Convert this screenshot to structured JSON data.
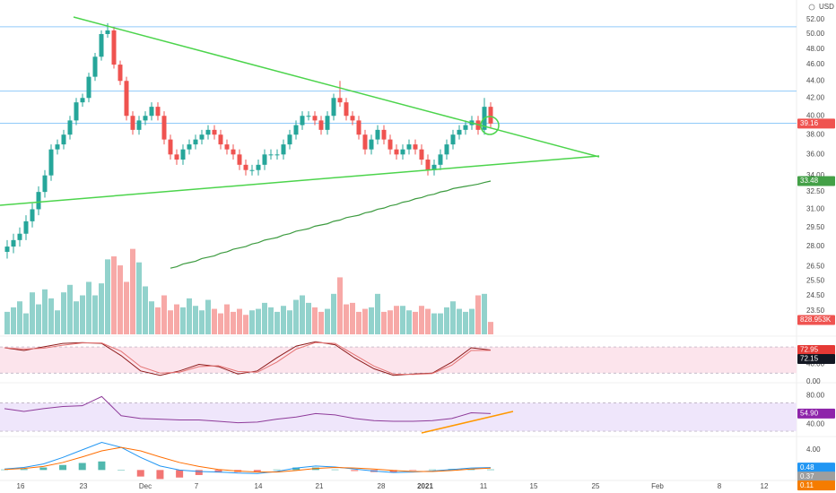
{
  "chart_data": [
    {
      "type": "candlestick",
      "currency": "USD",
      "log": true,
      "ylim": [
        22.2,
        54.2
      ],
      "yticks": [
        {
          "value": 52,
          "label": "52.00"
        },
        {
          "value": 50,
          "label": "50.00"
        },
        {
          "value": 48,
          "label": "48.00"
        },
        {
          "value": 46,
          "label": "46.00"
        },
        {
          "value": 44,
          "label": "44.00"
        },
        {
          "value": 42,
          "label": "42.00"
        },
        {
          "value": 40,
          "label": "40.00"
        },
        {
          "value": 38,
          "label": "38.00"
        },
        {
          "value": 36,
          "label": "36.00"
        },
        {
          "value": 34,
          "label": "34.00"
        },
        {
          "value": 32.5,
          "label": "32.50"
        },
        {
          "value": 31,
          "label": "31.00"
        },
        {
          "value": 29.5,
          "label": "29.50"
        },
        {
          "value": 28,
          "label": "28.00"
        },
        {
          "value": 26.5,
          "label": "26.50"
        },
        {
          "value": 25.5,
          "label": "25.50"
        },
        {
          "value": 24.5,
          "label": "24.50"
        },
        {
          "value": 23.5,
          "label": "23.50"
        }
      ],
      "x_labels": [
        "16",
        "23",
        "Dec",
        "7",
        "14",
        "21",
        "28",
        "2021",
        "11",
        "15",
        "25",
        "Feb",
        "8",
        "12"
      ],
      "up_color": "#26a69a",
      "down_color": "#ef5350",
      "open": [
        27.6,
        28.0,
        28.5,
        29.0,
        30.0,
        31.0,
        32.5,
        34.0,
        36.5,
        37.0,
        38.0,
        39.5,
        41.5,
        42.0,
        44.5,
        47.0,
        50.0,
        50.5,
        46.0,
        44.0,
        40.0,
        38.5,
        39.5,
        40.0,
        41.0,
        40.0,
        37.5,
        36.0,
        35.5,
        36.5,
        37.0,
        37.5,
        38.0,
        38.5,
        38.0,
        37.0,
        36.5,
        36.0,
        35.0,
        34.5,
        34.5,
        35.0,
        36.0,
        36.0,
        36.0,
        37.0,
        38.0,
        39.0,
        40.0,
        40.0,
        39.5,
        38.5,
        40.0,
        42.0,
        41.5,
        40.0,
        39.5,
        38.0,
        36.5,
        37.5,
        38.5,
        37.5,
        36.5,
        36.0,
        36.5,
        37.0,
        36.5,
        35.5,
        34.5,
        35.0,
        36.0,
        37.0,
        38.0,
        38.5,
        39.0,
        39.5,
        38.5,
        41.0
      ],
      "high": [
        28.5,
        29.0,
        29.5,
        30.5,
        31.5,
        33.0,
        34.5,
        37.0,
        37.5,
        38.5,
        40.0,
        42.0,
        42.5,
        45.0,
        47.5,
        50.5,
        51.5,
        51.0,
        46.5,
        44.5,
        40.5,
        40.0,
        40.5,
        41.5,
        41.5,
        40.5,
        38.0,
        36.5,
        37.0,
        37.5,
        38.0,
        38.5,
        39.0,
        39.0,
        38.5,
        37.5,
        37.0,
        36.5,
        35.5,
        35.0,
        35.5,
        36.5,
        36.5,
        36.5,
        37.5,
        38.5,
        39.5,
        40.5,
        40.5,
        40.5,
        40.0,
        40.5,
        42.5,
        44.0,
        42.0,
        40.5,
        40.0,
        38.5,
        38.0,
        39.0,
        39.0,
        38.0,
        37.0,
        37.0,
        37.5,
        37.5,
        37.0,
        36.0,
        35.5,
        36.5,
        37.5,
        38.5,
        39.0,
        39.5,
        40.0,
        40.0,
        42.0,
        41.5
      ],
      "low": [
        27.1,
        27.5,
        28.0,
        28.5,
        29.5,
        30.5,
        32.0,
        33.5,
        36.0,
        36.5,
        37.5,
        39.0,
        41.0,
        41.5,
        44.0,
        46.5,
        49.5,
        45.5,
        43.5,
        39.5,
        38.0,
        38.0,
        39.0,
        39.5,
        39.5,
        37.0,
        35.5,
        35.0,
        35.0,
        36.0,
        36.5,
        37.0,
        37.5,
        37.5,
        36.5,
        36.0,
        35.5,
        34.5,
        34.0,
        34.0,
        34.0,
        34.5,
        35.5,
        35.5,
        35.5,
        36.5,
        37.5,
        38.5,
        39.5,
        39.0,
        38.0,
        38.0,
        39.5,
        41.0,
        39.5,
        39.0,
        37.5,
        36.0,
        36.0,
        37.0,
        37.0,
        36.0,
        35.5,
        35.5,
        36.0,
        36.0,
        35.0,
        34.0,
        34.0,
        34.5,
        35.5,
        36.5,
        37.5,
        38.0,
        38.5,
        38.0,
        38.0,
        38.7
      ],
      "close": [
        28.0,
        28.5,
        29.0,
        30.0,
        31.0,
        32.5,
        34.0,
        36.5,
        37.0,
        38.0,
        39.5,
        41.5,
        42.0,
        44.5,
        47.0,
        50.0,
        50.5,
        46.0,
        44.0,
        40.0,
        38.5,
        39.5,
        40.0,
        41.0,
        40.0,
        37.5,
        36.0,
        35.5,
        36.5,
        37.0,
        37.5,
        38.0,
        38.5,
        38.0,
        37.0,
        36.5,
        36.0,
        35.0,
        34.5,
        34.5,
        35.0,
        36.0,
        36.0,
        36.0,
        37.0,
        38.0,
        39.0,
        40.0,
        40.0,
        39.5,
        38.5,
        40.0,
        42.0,
        41.5,
        40.0,
        39.5,
        38.0,
        36.5,
        37.5,
        38.5,
        37.5,
        36.5,
        36.0,
        36.5,
        37.0,
        36.5,
        35.5,
        34.5,
        35.0,
        36.0,
        37.0,
        38.0,
        38.5,
        39.0,
        39.5,
        38.5,
        41.0,
        39.16
      ],
      "price_tag": "39.16",
      "horizontal_lines": [
        51.0,
        42.8,
        39.2
      ],
      "horizontal_line_color": "#90caf9",
      "ma": {
        "color": "#3d9b40",
        "tag": "33.48",
        "tag_color": "#43a047",
        "values": [
          null,
          null,
          null,
          null,
          null,
          null,
          null,
          null,
          null,
          null,
          null,
          null,
          null,
          null,
          null,
          null,
          null,
          null,
          null,
          null,
          null,
          null,
          null,
          null,
          null,
          null,
          26.4,
          26.5,
          26.7,
          26.8,
          26.9,
          27.1,
          27.2,
          27.3,
          27.5,
          27.6,
          27.8,
          27.9,
          28.0,
          28.2,
          28.3,
          28.5,
          28.6,
          28.7,
          28.9,
          29.0,
          29.2,
          29.3,
          29.4,
          29.6,
          29.7,
          29.8,
          30.0,
          30.1,
          30.3,
          30.4,
          30.5,
          30.7,
          30.8,
          31.0,
          31.1,
          31.3,
          31.4,
          31.6,
          31.7,
          31.9,
          32.0,
          32.2,
          32.3,
          32.5,
          32.6,
          32.8,
          32.9,
          33.0,
          33.1,
          33.2,
          33.35,
          33.48
        ]
      },
      "volume": {
        "lim": [
          0,
          22000
        ],
        "label": "828.953K",
        "values": [
          1500,
          1800,
          2200,
          1400,
          2800,
          2000,
          3000,
          2400,
          1600,
          2800,
          3300,
          2200,
          2600,
          3500,
          2600,
          3400,
          5000,
          5200,
          4600,
          3500,
          5700,
          4800,
          3200,
          2200,
          1800,
          2600,
          1600,
          2000,
          1800,
          2400,
          1900,
          1600,
          2300,
          1700,
          1400,
          2000,
          1500,
          1700,
          1300,
          1600,
          1700,
          2100,
          1800,
          1500,
          1900,
          1600,
          2300,
          2600,
          2100,
          1800,
          1500,
          1700,
          2700,
          3800,
          2000,
          2100,
          1500,
          1700,
          1800,
          2700,
          1500,
          1600,
          1900,
          1900,
          1600,
          1500,
          1900,
          1700,
          1400,
          1400,
          1800,
          2200,
          1700,
          1500,
          1700,
          2600,
          2700,
          828.953
        ]
      }
    },
    {
      "type": "stochastic",
      "ylim": [
        0,
        98.6
      ],
      "yticks": [
        {
          "value": 40,
          "label": "40.00"
        },
        {
          "value": 0,
          "label": "0.00"
        }
      ],
      "bands": [
        20,
        80
      ],
      "band_color": "#fce4ec",
      "series": [
        {
          "color": "#8e1b1b",
          "last_label": "72.95",
          "tag_color": "#e53935",
          "values": [
            78,
            72,
            80,
            88,
            90,
            88,
            60,
            25,
            15,
            25,
            40,
            35,
            18,
            25,
            55,
            82,
            92,
            85,
            55,
            30,
            15,
            18,
            20,
            45,
            78,
            72.95
          ]
        },
        {
          "color": "#e57373",
          "last_label": "72.15",
          "tag_color": "#131722",
          "values": [
            78,
            75,
            77,
            84,
            89,
            89,
            70,
            35,
            20,
            22,
            35,
            37,
            24,
            22,
            45,
            75,
            90,
            88,
            62,
            36,
            18,
            17,
            19,
            38,
            72,
            72.15
          ]
        }
      ]
    },
    {
      "type": "rsi",
      "ylim": [
        22.5,
        96
      ],
      "yticks": [
        {
          "value": 80,
          "label": "80.00"
        },
        {
          "value": 40,
          "label": "40.00"
        }
      ],
      "bands": [
        30,
        70
      ],
      "band_color": "#efe6fb",
      "series": [
        {
          "color": "#8e3b9a",
          "last_label": "54.90",
          "tag_color": "#8e24aa",
          "values": [
            62,
            58,
            62,
            65,
            66,
            79,
            52,
            48,
            47,
            46,
            46,
            44,
            42,
            43,
            47,
            50,
            55,
            53,
            48,
            45,
            44,
            44,
            45,
            48,
            56,
            54.9
          ]
        }
      ]
    },
    {
      "type": "macd",
      "ylim": [
        -1.9,
        6.3
      ],
      "yticks": [
        {
          "value": 4,
          "label": "4.00"
        }
      ],
      "histogram": {
        "up_color": "#26a69a",
        "down_color": "#ef5350",
        "last_label": "0.11",
        "tag_color": "#f57c00",
        "values": [
          0.1,
          0.2,
          0.5,
          1.0,
          1.4,
          1.7,
          0.0,
          -1.3,
          -1.8,
          -1.5,
          -1.0,
          -0.5,
          -0.4,
          -0.3,
          0.1,
          0.5,
          0.5,
          0.1,
          -0.2,
          -0.4,
          -0.4,
          -0.1,
          0.1,
          0.2,
          0.2,
          0.11
        ]
      },
      "series": [
        {
          "color": "#2196f3",
          "last_label": "0.48",
          "tag_color": "#2196f3",
          "values": [
            0.2,
            0.5,
            1.2,
            2.5,
            4.0,
            5.5,
            4.5,
            2.5,
            0.8,
            0.0,
            -0.3,
            -0.4,
            -0.6,
            -0.7,
            -0.3,
            0.4,
            0.8,
            0.6,
            0.2,
            -0.2,
            -0.5,
            -0.4,
            -0.2,
            0.1,
            0.4,
            0.48
          ]
        },
        {
          "color": "#ff6d00",
          "last_label": "0.37",
          "tag_color": "#9e9e9e",
          "values": [
            0.1,
            0.3,
            0.7,
            1.5,
            2.6,
            3.8,
            4.5,
            3.8,
            2.6,
            1.5,
            0.7,
            0.1,
            -0.2,
            -0.4,
            -0.4,
            -0.1,
            0.3,
            0.5,
            0.4,
            0.2,
            -0.1,
            -0.3,
            -0.3,
            -0.1,
            0.2,
            0.37
          ]
        }
      ]
    }
  ]
}
